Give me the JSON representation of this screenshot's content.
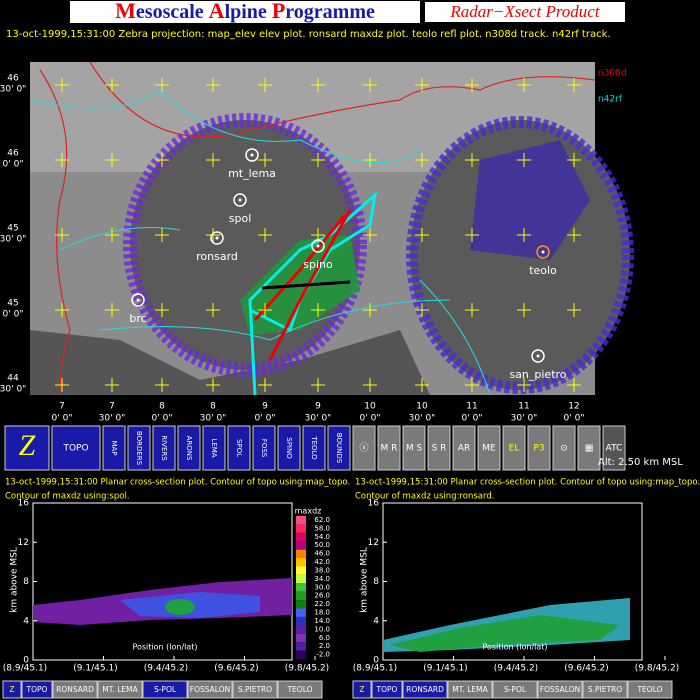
{
  "header": {
    "title_parts": [
      "M",
      "esoscale ",
      "A",
      "lpine ",
      "P",
      "rogramme"
    ],
    "product": "Radar−Xsect Product",
    "info": "13-oct-1999,15:31:00  Zebra projection: map_elev elev plot. ronsard maxdz plot. teolo refl plot. n308d track. n42rf track."
  },
  "map": {
    "legend": [
      "n308d",
      "n42rf"
    ],
    "stations": [
      "mt_lema",
      "spol",
      "ronsard",
      "spino",
      "brc",
      "teolo",
      "san_pietro"
    ],
    "lat_labels": [
      {
        "deg": "46",
        "min": "30' 0\""
      },
      {
        "deg": "46",
        "min": "0' 0\""
      },
      {
        "deg": "45",
        "min": "30' 0\""
      },
      {
        "deg": "45",
        "min": "0' 0\""
      },
      {
        "deg": "44",
        "min": "30' 0\""
      }
    ],
    "lon_labels": [
      {
        "deg": "7",
        "min": "0' 0\""
      },
      {
        "deg": "7",
        "min": "30' 0\""
      },
      {
        "deg": "8",
        "min": "0' 0\""
      },
      {
        "deg": "8",
        "min": "30' 0\""
      },
      {
        "deg": "9",
        "min": "0' 0\""
      },
      {
        "deg": "9",
        "min": "30' 0\""
      },
      {
        "deg": "10",
        "min": "0' 0\""
      },
      {
        "deg": "10",
        "min": "30' 0\""
      },
      {
        "deg": "11",
        "min": "0' 0\""
      },
      {
        "deg": "11",
        "min": "30' 0\""
      },
      {
        "deg": "12",
        "min": "0' 0\""
      }
    ]
  },
  "toolbar": {
    "buttons": [
      "Z",
      "TOPO",
      "MAP",
      "BORDERS",
      "RIVERS",
      "ARONS",
      "LEMA",
      "SPOL",
      "FOSS",
      "SPINO",
      "TEOLO",
      "BOUNDS",
      "ⓢ",
      "M R",
      "M S",
      "S R",
      "AR",
      "ME",
      "EL",
      "P3",
      "⊙",
      "▦",
      "ATC"
    ],
    "altitude": "Alt: 2.50 km MSL"
  },
  "panels": [
    {
      "caption": [
        "13-oct-1999,15:31:00  Planar cross-section plot.  Contour of topo using:map_topo.",
        "Contour of maxdz using:spol."
      ],
      "y_label": "km above MSL",
      "x_label": "Position (lon/lat)",
      "yticks": [
        "0",
        "4",
        "8",
        "12",
        "16"
      ],
      "xticks": [
        "(8.9/45.1)",
        "(9.1/45.1)",
        "(9.4/45.2)",
        "(9.6/45.2)",
        "(9.8/45.2)"
      ],
      "colorbar_title": "maxdz",
      "colorbar_ticks": [
        "62.0",
        "58.0",
        "54.0",
        "50.0",
        "46.0",
        "42.0",
        "38.0",
        "34.0",
        "30.0",
        "26.0",
        "22.0",
        "18.0",
        "14.0",
        "10.0",
        "6.0",
        "2.0",
        "-2.0"
      ]
    },
    {
      "caption": [
        "13-oct-1999,15:31:00  Planar cross-section plot.  Contour of topo using:map_topo.",
        "Contour of maxdz using:ronsard."
      ],
      "y_label": "km above MSL",
      "x_label": "Position (lon/lat)",
      "yticks": [
        "0",
        "4",
        "8",
        "12",
        "16"
      ],
      "xticks": [
        "(8.9/45.1)",
        "(9.1/45.1)",
        "(9.4/45.2)",
        "(9.6/45.2)",
        "(9.8/45.2)"
      ]
    }
  ],
  "bottom_bars": [
    [
      "Z",
      "TOPO",
      "RONSARD",
      "MT. LEMA",
      "S-POL",
      "FOSSALON",
      "S.PIETRO",
      "TEOLO"
    ],
    [
      "Z",
      "TOPO",
      "RONSARD",
      "MT. LEMA",
      "S-POL",
      "FOSSALON",
      "S.PIETRO",
      "TEOLO"
    ]
  ]
}
